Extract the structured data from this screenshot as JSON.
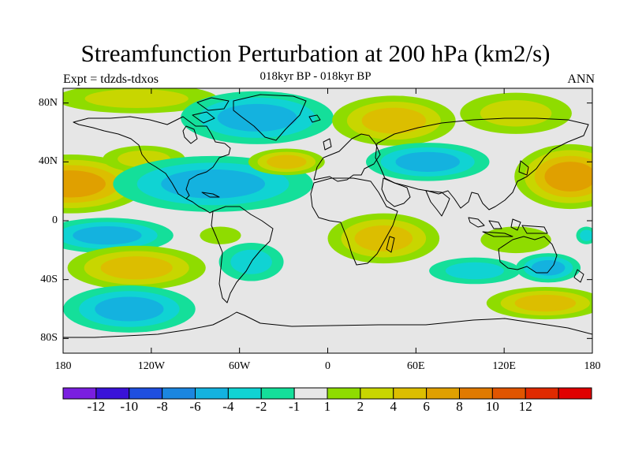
{
  "chart_data": {
    "type": "heatmap",
    "title": "Streamfunction Perturbation at 200 hPa (km2/s)",
    "subtitle_left": "Expt = tdzds-tdxos",
    "subtitle_center": "018kyr BP - 018kyr BP",
    "subtitle_right": "ANN",
    "x_range": [
      -180,
      180
    ],
    "y_range": [
      -90,
      90
    ],
    "x_ticks": [
      {
        "value": -180,
        "label": "180"
      },
      {
        "value": -120,
        "label": "120W"
      },
      {
        "value": -60,
        "label": "60W"
      },
      {
        "value": 0,
        "label": "0"
      },
      {
        "value": 60,
        "label": "60E"
      },
      {
        "value": 120,
        "label": "120E"
      },
      {
        "value": 180,
        "label": "180"
      }
    ],
    "y_ticks": [
      {
        "value": 80,
        "label": "80N"
      },
      {
        "value": 40,
        "label": "40N"
      },
      {
        "value": 0,
        "label": "0"
      },
      {
        "value": -40,
        "label": "40S"
      },
      {
        "value": -80,
        "label": "80S"
      }
    ],
    "colorbar": {
      "colors": [
        "#7a1fe0",
        "#3a12d8",
        "#1f4fe0",
        "#1b86e0",
        "#14b2df",
        "#10d3d3",
        "#14df9a",
        "#e6e6e6",
        "#8fdc00",
        "#c8d600",
        "#dcbe00",
        "#e0a000",
        "#e07a00",
        "#e05500",
        "#e02a00",
        "#e00000"
      ],
      "tick_values": [
        -12,
        -10,
        -8,
        -6,
        -4,
        -2,
        -1,
        1,
        2,
        4,
        6,
        8,
        10,
        12
      ],
      "tick_labels": [
        "-12",
        "-10",
        "-8",
        "-6",
        "-4",
        "-2",
        "-1",
        "1",
        "2",
        "4",
        "6",
        "8",
        "10",
        "12"
      ]
    },
    "anomalies": [
      {
        "lon": -130,
        "lat": 83,
        "rlon": 55,
        "rlat": 10,
        "level": 2
      },
      {
        "lon": -48,
        "lat": 70,
        "rlon": 52,
        "rlat": 18,
        "level": -3
      },
      {
        "lon": 45,
        "lat": 68,
        "rlon": 42,
        "rlat": 17,
        "level": 3
      },
      {
        "lon": 128,
        "lat": 73,
        "rlon": 38,
        "rlat": 14,
        "level": 2
      },
      {
        "lon": -175,
        "lat": 25,
        "rlon": 52,
        "rlat": 20,
        "level": 4
      },
      {
        "lon": -125,
        "lat": 42,
        "rlon": 28,
        "rlat": 9,
        "level": 2
      },
      {
        "lon": -78,
        "lat": 25,
        "rlon": 68,
        "rlat": 19,
        "level": -3
      },
      {
        "lon": -28,
        "lat": 40,
        "rlon": 26,
        "rlat": 9,
        "level": 3
      },
      {
        "lon": 68,
        "lat": 40,
        "rlon": 42,
        "rlat": 13,
        "level": -3
      },
      {
        "lon": 165,
        "lat": 30,
        "rlon": 38,
        "rlat": 22,
        "level": 4
      },
      {
        "lon": -150,
        "lat": -10,
        "rlon": 45,
        "rlat": 12,
        "level": -3
      },
      {
        "lon": -73,
        "lat": -10,
        "rlon": 14,
        "rlat": 6,
        "level": 1
      },
      {
        "lon": 38,
        "lat": -12,
        "rlon": 38,
        "rlat": 17,
        "level": 3
      },
      {
        "lon": 128,
        "lat": -13,
        "rlon": 24,
        "rlat": 9,
        "level": 1
      },
      {
        "lon": 176,
        "lat": -10,
        "rlon": 7,
        "rlat": 6,
        "level": -2
      },
      {
        "lon": -130,
        "lat": -32,
        "rlon": 47,
        "rlat": 15,
        "level": 3
      },
      {
        "lon": -52,
        "lat": -28,
        "rlon": 22,
        "rlat": 13,
        "level": -2
      },
      {
        "lon": 100,
        "lat": -34,
        "rlon": 31,
        "rlat": 9,
        "level": -2
      },
      {
        "lon": 150,
        "lat": -32,
        "rlon": 22,
        "rlat": 10,
        "level": -3
      },
      {
        "lon": -135,
        "lat": -60,
        "rlon": 45,
        "rlat": 16,
        "level": -3
      },
      {
        "lon": 148,
        "lat": -56,
        "rlon": 40,
        "rlat": 11,
        "level": 3
      }
    ]
  }
}
